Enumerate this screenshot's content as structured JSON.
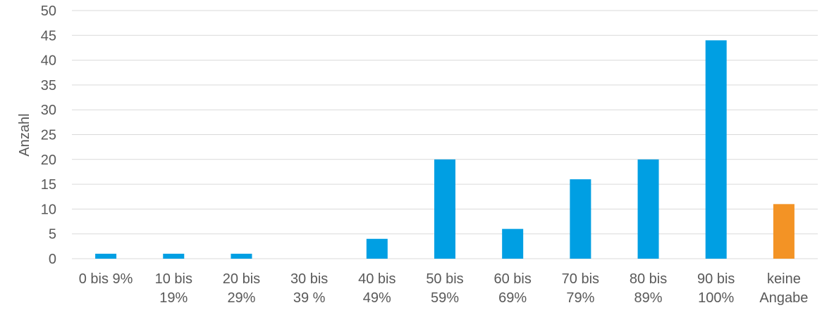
{
  "chart_data": {
    "type": "bar",
    "title": "",
    "xlabel": "",
    "ylabel": "Anzahl",
    "ylim": [
      0,
      50
    ],
    "yticks": [
      0,
      5,
      10,
      15,
      20,
      25,
      30,
      35,
      40,
      45,
      50
    ],
    "grid": true,
    "legend": "none",
    "categories": [
      [
        "0 bis 9%"
      ],
      [
        "10 bis",
        "19%"
      ],
      [
        "20 bis",
        "29%"
      ],
      [
        "30 bis",
        "39 %"
      ],
      [
        "40 bis",
        "49%"
      ],
      [
        "50 bis",
        "59%"
      ],
      [
        "60 bis",
        "69%"
      ],
      [
        "70 bis",
        "79%"
      ],
      [
        "80 bis",
        "89%"
      ],
      [
        "90 bis",
        "100%"
      ],
      [
        "keine",
        "Angabe"
      ]
    ],
    "values": [
      1,
      1,
      1,
      0,
      4,
      20,
      6,
      16,
      20,
      44,
      11
    ],
    "colors": [
      "#009FE3",
      "#009FE3",
      "#009FE3",
      "#009FE3",
      "#009FE3",
      "#009FE3",
      "#009FE3",
      "#009FE3",
      "#009FE3",
      "#009FE3",
      "#F39325"
    ],
    "grid_color": "#D9D9D9",
    "text_color": "#595959"
  }
}
